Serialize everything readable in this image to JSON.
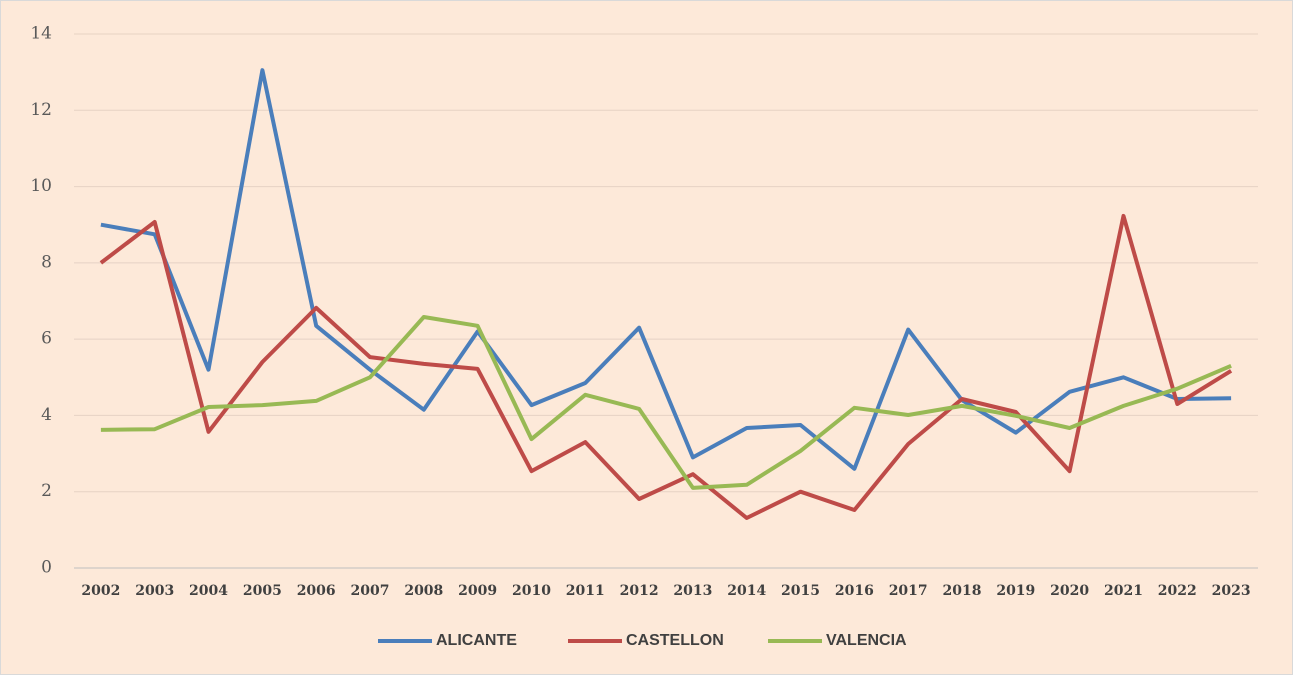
{
  "chart_data": {
    "type": "line",
    "categories": [
      "2002",
      "2003",
      "2004",
      "2005",
      "2006",
      "2007",
      "2008",
      "2009",
      "2010",
      "2011",
      "2012",
      "2013",
      "2014",
      "2015",
      "2016",
      "2017",
      "2018",
      "2019",
      "2020",
      "2021",
      "2022",
      "2023"
    ],
    "series": [
      {
        "name": "ALICANTE",
        "color": "#4a7ebb",
        "values": [
          9.0,
          8.75,
          5.2,
          13.05,
          6.35,
          5.2,
          4.15,
          6.2,
          4.27,
          4.85,
          6.3,
          2.9,
          3.67,
          3.75,
          2.6,
          6.25,
          4.4,
          3.55,
          4.62,
          5.0,
          4.43,
          4.45
        ]
      },
      {
        "name": "CASTELLON",
        "color": "#be4b48",
        "values": [
          8.0,
          9.07,
          3.57,
          5.4,
          6.82,
          5.53,
          5.35,
          5.22,
          2.54,
          3.3,
          1.81,
          2.46,
          1.31,
          2.0,
          1.52,
          3.25,
          4.43,
          4.09,
          2.54,
          9.23,
          4.3,
          5.17
        ]
      },
      {
        "name": "VALENCIA",
        "color": "#98b954",
        "values": [
          3.62,
          3.64,
          4.22,
          4.27,
          4.38,
          5.0,
          6.58,
          6.35,
          3.38,
          4.54,
          4.17,
          2.1,
          2.18,
          3.07,
          4.2,
          4.01,
          4.25,
          3.99,
          3.67,
          4.25,
          4.7,
          5.3
        ]
      }
    ],
    "ylim": [
      0,
      14
    ],
    "yticks": [
      0,
      2,
      4,
      6,
      8,
      10,
      12,
      14
    ],
    "grid": true,
    "legend": "bottom"
  }
}
